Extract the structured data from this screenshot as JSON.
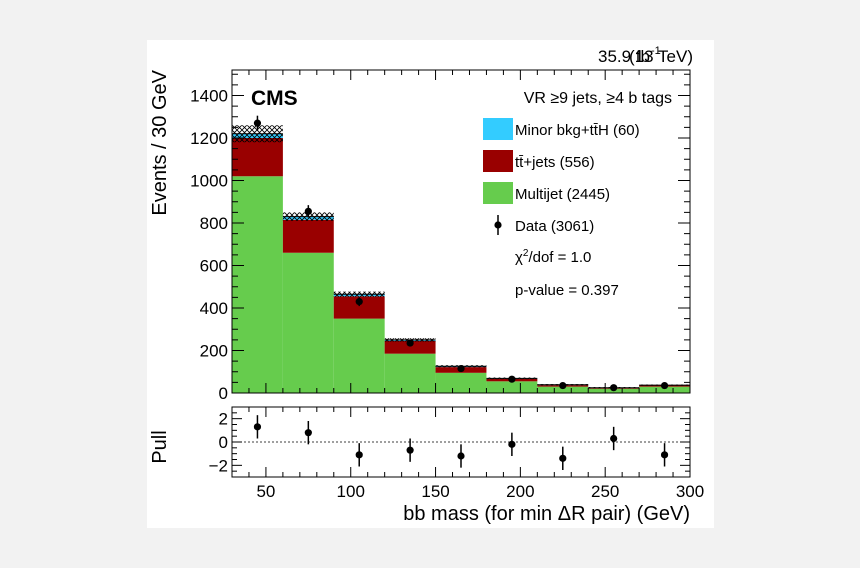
{
  "header": {
    "lumi": "35.9 fb",
    "lumi_exp": "-1",
    "energy": "(13 TeV)",
    "experiment": "CMS"
  },
  "legend": {
    "region": "VR ≥9 jets, ≥4 b tags",
    "entries": [
      {
        "label": "Minor bkg+tt̄H (60)",
        "color": "#33ccff",
        "kind": "box"
      },
      {
        "label": "tt̄+jets (556)",
        "color": "#990000",
        "kind": "box"
      },
      {
        "label": "Multijet (2445)",
        "color": "#66cc4d",
        "kind": "box"
      },
      {
        "label": "Data (3061)",
        "color": "#000000",
        "kind": "marker"
      }
    ],
    "chi2_prefix": "χ",
    "chi2_sup": "2",
    "chi2_suffix": "/dof = 1.0",
    "pvalue": "p-value = 0.397"
  },
  "chart_data": [
    {
      "type": "bar",
      "stacked": true,
      "title": "",
      "xlabel": "bb mass (for min ΔR pair) (GeV)",
      "ylabel": "Events / 30 GeV",
      "xlim": [
        30,
        300
      ],
      "ylim": [
        0,
        1520
      ],
      "bin_edges": [
        30,
        60,
        90,
        120,
        150,
        180,
        210,
        240,
        270,
        300
      ],
      "series": [
        {
          "name": "Multijet (2445)",
          "color": "#66cc4d",
          "values": [
            1020,
            660,
            350,
            185,
            95,
            55,
            30,
            20,
            30
          ]
        },
        {
          "name": "tt̄+jets (556)",
          "color": "#990000",
          "values": [
            180,
            155,
            105,
            60,
            27,
            12,
            7,
            4,
            6
          ]
        },
        {
          "name": "Minor bkg+tt̄H (60)",
          "color": "#33ccff",
          "values": [
            20,
            15,
            10,
            5,
            4,
            2,
            2,
            1,
            1
          ]
        }
      ],
      "uncertainty": [
        40,
        20,
        12,
        8,
        5,
        4,
        3,
        3,
        3
      ],
      "data": {
        "x": [
          45,
          75,
          105,
          135,
          165,
          195,
          225,
          255,
          285
        ],
        "y": [
          1270,
          855,
          430,
          235,
          115,
          65,
          35,
          25,
          35
        ],
        "err": [
          35,
          29,
          21,
          15,
          11,
          8,
          6,
          5,
          6
        ]
      },
      "yticks": [
        0,
        200,
        400,
        600,
        800,
        1000,
        1200,
        1400
      ]
    },
    {
      "type": "scatter",
      "title": "",
      "xlabel": "bb mass (for min ΔR pair) (GeV)",
      "ylabel": "Pull",
      "xlim": [
        30,
        300
      ],
      "ylim": [
        -3,
        3
      ],
      "x": [
        45,
        75,
        105,
        135,
        165,
        195,
        225,
        255,
        285
      ],
      "y": [
        1.3,
        0.8,
        -1.1,
        -0.7,
        -1.2,
        -0.2,
        -1.4,
        0.3,
        -1.1
      ],
      "err": [
        1,
        1,
        1,
        1,
        1,
        1,
        1,
        1,
        1
      ],
      "yticks": [
        -2,
        0,
        2
      ],
      "xticks": [
        50,
        100,
        150,
        200,
        250,
        300
      ]
    }
  ]
}
